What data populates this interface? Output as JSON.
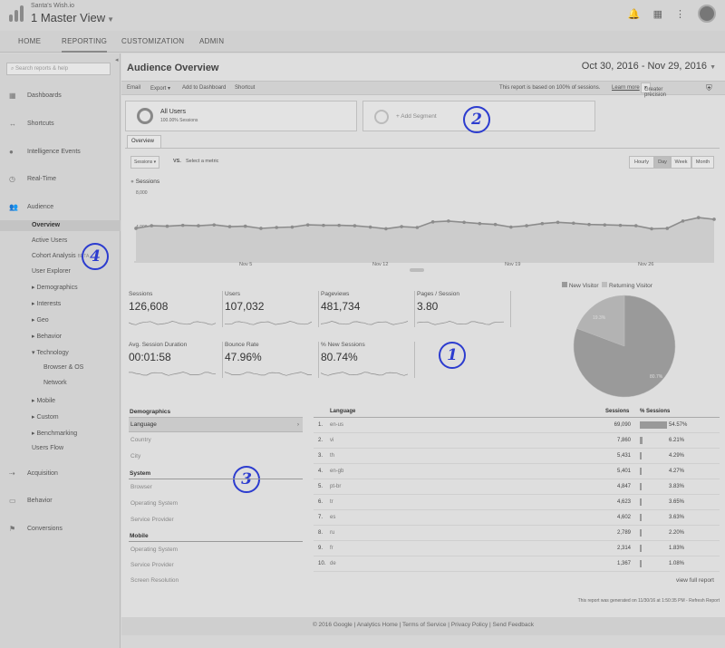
{
  "header": {
    "account": "Santa's Wish.io",
    "view": "1 Master View",
    "icons": [
      "bell-icon",
      "apps-icon",
      "more-icon"
    ]
  },
  "nav": {
    "tabs": [
      "HOME",
      "REPORTING",
      "CUSTOMIZATION",
      "ADMIN"
    ]
  },
  "sidebar": {
    "search_placeholder": "Search reports & help",
    "items": [
      "Dashboards",
      "Shortcuts",
      "Intelligence Events",
      "Real-Time",
      "Audience",
      "Acquisition",
      "Behavior",
      "Conversions"
    ],
    "audience_sub": [
      "Overview",
      "Active Users",
      "Cohort Analysis",
      "User Explorer",
      "▸ Demographics",
      "▸ Interests",
      "▸ Geo",
      "▸ Behavior",
      "▾ Technology",
      "Browser & OS",
      "Network",
      "▸ Mobile",
      "▸ Custom",
      "▸ Benchmarking",
      "Users Flow"
    ],
    "cohort_badge": "BETA"
  },
  "report": {
    "title": "Audience Overview",
    "date_range": "Oct 30, 2016 - Nov 29, 2016",
    "toolbar": {
      "email": "Email",
      "export": "Export ▾",
      "add_dashboard": "Add to Dashboard",
      "shortcut": "Shortcut",
      "sampling_note": "This report is based on 100% of sessions.",
      "learn_more": "Learn more",
      "precision": "Greater precision"
    },
    "segment": {
      "name": "All Users",
      "pct": "100.00% Sessions",
      "add": "+ Add Segment"
    },
    "overview_tab": "Overview",
    "metric_select": "Sessions",
    "vs": "VS.",
    "select_metric": "Select a metric",
    "granularity": [
      "Hourly",
      "Day",
      "Week",
      "Month"
    ],
    "legend": "Sessions",
    "y_top": "8,000",
    "y_mid": "4,000",
    "x_labels": [
      "Nov 5",
      "Nov 12",
      "Nov 19",
      "Nov 26"
    ]
  },
  "chart_data": {
    "type": "line",
    "series": [
      {
        "name": "Sessions",
        "values": [
          3900,
          4200,
          4150,
          4250,
          4200,
          4300,
          4100,
          4150,
          3900,
          4000,
          4050,
          4300,
          4250,
          4250,
          4200,
          4050,
          3850,
          4100,
          4000,
          4650,
          4750,
          4600,
          4450,
          4350,
          4050,
          4200,
          4450,
          4600,
          4500,
          4350,
          4300,
          4250,
          4200,
          3850,
          3900,
          4750,
          5150,
          4950
        ]
      }
    ],
    "ylim": [
      0,
      8000
    ]
  },
  "metrics": [
    {
      "label": "Sessions",
      "value": "126,608"
    },
    {
      "label": "Users",
      "value": "107,032"
    },
    {
      "label": "Pageviews",
      "value": "481,734"
    },
    {
      "label": "Pages / Session",
      "value": "3.80"
    },
    {
      "label": "Avg. Session Duration",
      "value": "00:01:58"
    },
    {
      "label": "Bounce Rate",
      "value": "47.96%"
    },
    {
      "label": "% New Sessions",
      "value": "80.74%"
    }
  ],
  "pie": {
    "legend": [
      "New Visitor",
      "Returning Visitor"
    ],
    "new_pct": 80.7,
    "ret_pct": 19.3,
    "new_label": "80.7%",
    "ret_label": "19.3%"
  },
  "dimensions": {
    "demographics_title": "Demographics",
    "demographics": [
      "Language",
      "Country",
      "City"
    ],
    "system_title": "System",
    "system": [
      "Browser",
      "Operating System",
      "Service Provider"
    ],
    "mobile_title": "Mobile",
    "mobile": [
      "Operating System",
      "Service Provider",
      "Screen Resolution"
    ]
  },
  "language_table": {
    "headers": [
      "Language",
      "Sessions",
      "% Sessions"
    ],
    "rows": [
      {
        "n": "1.",
        "lang": "en-us",
        "sessions": "69,090",
        "pct": "54.57%",
        "v": 54.57
      },
      {
        "n": "2.",
        "lang": "vi",
        "sessions": "7,860",
        "pct": "6.21%",
        "v": 6.21
      },
      {
        "n": "3.",
        "lang": "th",
        "sessions": "5,431",
        "pct": "4.29%",
        "v": 4.29
      },
      {
        "n": "4.",
        "lang": "en-gb",
        "sessions": "5,401",
        "pct": "4.27%",
        "v": 4.27
      },
      {
        "n": "5.",
        "lang": "pt-br",
        "sessions": "4,847",
        "pct": "3.83%",
        "v": 3.83
      },
      {
        "n": "6.",
        "lang": "tr",
        "sessions": "4,623",
        "pct": "3.65%",
        "v": 3.65
      },
      {
        "n": "7.",
        "lang": "es",
        "sessions": "4,602",
        "pct": "3.63%",
        "v": 3.63
      },
      {
        "n": "8.",
        "lang": "ru",
        "sessions": "2,789",
        "pct": "2.20%",
        "v": 2.2
      },
      {
        "n": "9.",
        "lang": "fr",
        "sessions": "2,314",
        "pct": "1.83%",
        "v": 1.83
      },
      {
        "n": "10.",
        "lang": "de",
        "sessions": "1,367",
        "pct": "1.08%",
        "v": 1.08
      }
    ],
    "view_full": "view full report"
  },
  "generated": "This report was generated on 11/30/16 at 1:50:35 PM - Refresh Report",
  "footer": "© 2016 Google | Analytics Home | Terms of Service | Privacy Policy | Send Feedback",
  "annotations": [
    "1",
    "2",
    "3",
    "4"
  ]
}
